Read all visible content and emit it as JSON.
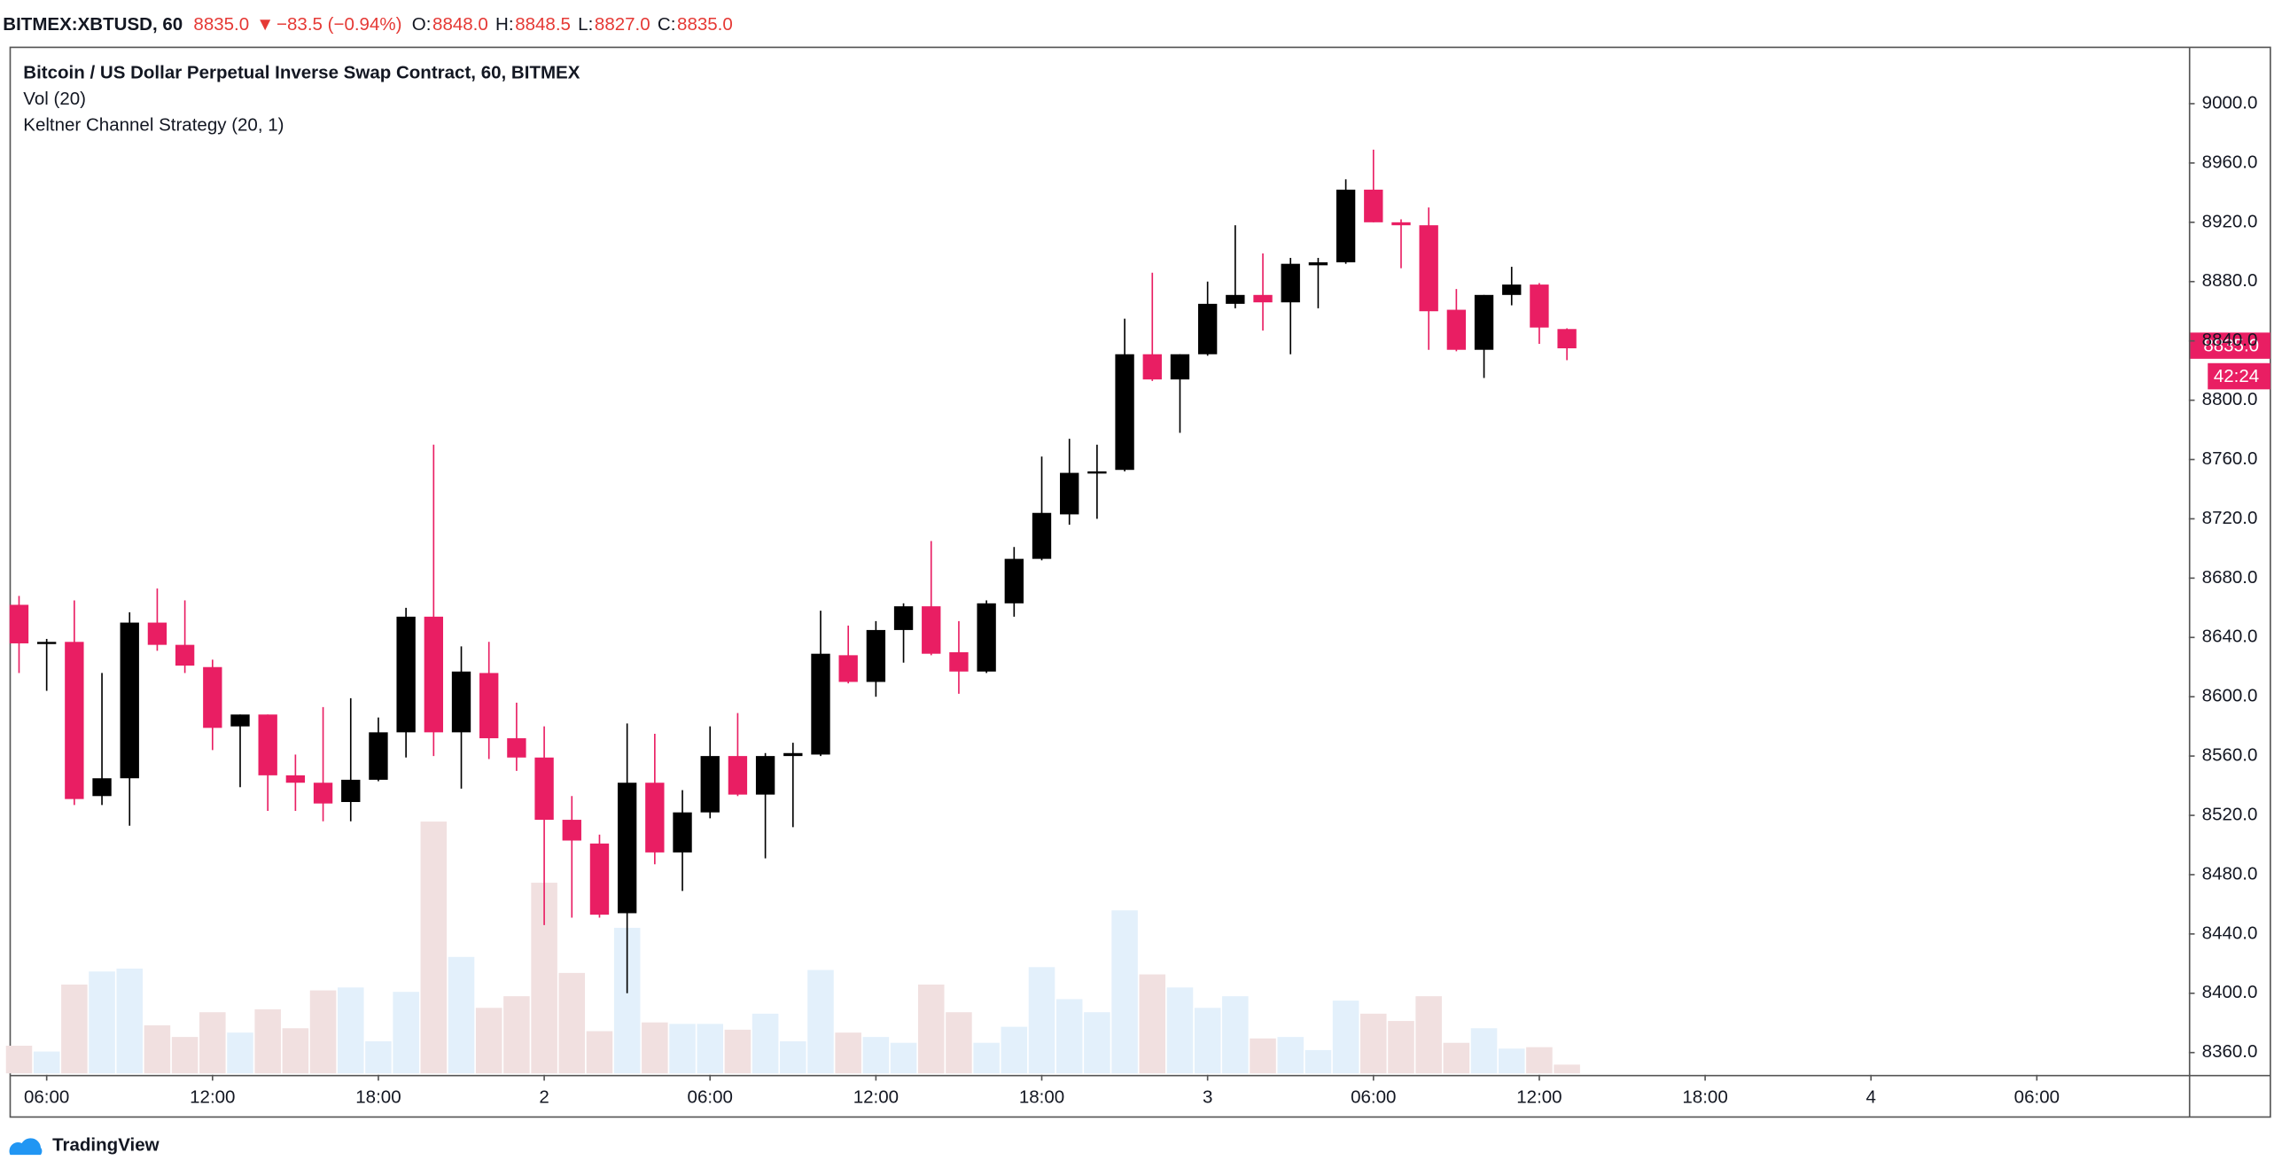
{
  "header": {
    "symbol": "BITMEX:XBTUSD, 60",
    "last": "8835.0",
    "arrow": "▼",
    "change": "−83.5 (−0.94%)",
    "ohlc": [
      {
        "key": "O:",
        "value": "8848.0"
      },
      {
        "key": "H:",
        "value": "8848.5"
      },
      {
        "key": "L:",
        "value": "8827.0"
      },
      {
        "key": "C:",
        "value": "8835.0"
      }
    ]
  },
  "legend": [
    "Bitcoin / US Dollar Perpetual Inverse Swap Contract, 60, BITMEX",
    "Vol (20)",
    "Keltner Channel Strategy (20, 1)"
  ],
  "price_badge": "8835.0",
  "countdown": "42:24",
  "brand": "TradingView",
  "chart_data": {
    "type": "candlestick",
    "x": [
      5,
      6,
      7,
      8,
      9,
      10,
      11,
      12,
      13,
      14,
      15,
      16,
      17,
      18,
      19,
      20,
      21,
      22,
      23,
      24,
      25,
      26,
      27,
      28,
      29,
      30,
      31,
      32,
      33,
      34,
      35,
      36,
      37,
      38,
      39,
      40,
      41,
      42,
      43,
      44,
      45,
      46,
      47,
      48,
      49,
      50,
      51,
      52,
      53,
      54,
      55,
      56,
      57,
      58,
      59,
      60,
      61
    ],
    "open": [
      8662,
      8636,
      8637,
      8533,
      8545,
      8650,
      8635,
      8620,
      8580,
      8588,
      8547,
      8542,
      8529,
      8544,
      8576,
      8654,
      8576,
      8616,
      8572,
      8559,
      8517,
      8501,
      8454,
      8542,
      8495,
      8522,
      8560,
      8534,
      8560,
      8561,
      8628,
      8610,
      8645,
      8661,
      8630,
      8617,
      8663,
      8693,
      8723,
      8751,
      8753,
      8831,
      8814,
      8831,
      8865,
      8871,
      8866,
      8891,
      8893,
      8942,
      8920,
      8918,
      8861,
      8834,
      8871,
      8878,
      8848
    ],
    "high": [
      8668,
      8639,
      8665,
      8616,
      8657,
      8673,
      8665,
      8625,
      8588,
      8588,
      8561,
      8593,
      8599,
      8586,
      8660,
      8770,
      8634,
      8637,
      8596,
      8580,
      8533,
      8507,
      8582,
      8575,
      8537,
      8580,
      8589,
      8562,
      8569,
      8658,
      8648,
      8651,
      8663,
      8705,
      8651,
      8665,
      8701,
      8762,
      8774,
      8770,
      8855,
      8886,
      8831,
      8880,
      8918,
      8899,
      8896,
      8896,
      8949,
      8969,
      8922,
      8930,
      8875,
      8871,
      8890,
      8879,
      8848.5
    ],
    "low": [
      8616,
      8604,
      8527,
      8527,
      8513,
      8631,
      8616,
      8564,
      8539,
      8523,
      8523,
      8516,
      8516,
      8543,
      8559,
      8560,
      8538,
      8558,
      8550,
      8446,
      8451,
      8451,
      8400,
      8487,
      8469,
      8518,
      8533,
      8491,
      8512,
      8560,
      8609,
      8600,
      8623,
      8628,
      8602,
      8616,
      8654,
      8692,
      8716,
      8720,
      8752,
      8813,
      8778,
      8830,
      8862,
      8847,
      8831,
      8862,
      8892,
      8920,
      8889,
      8834,
      8833,
      8815,
      8864,
      8838,
      8827
    ],
    "close": [
      8636,
      8637,
      8531,
      8545,
      8650,
      8635,
      8621,
      8579,
      8588,
      8547,
      8542,
      8528,
      8544,
      8576,
      8654,
      8576,
      8617,
      8572,
      8559,
      8517,
      8503,
      8453,
      8542,
      8495,
      8522,
      8560,
      8534,
      8560,
      8562,
      8629,
      8610,
      8645,
      8661,
      8629,
      8617,
      8663,
      8693,
      8724,
      8751,
      8752,
      8831,
      8814,
      8831,
      8865,
      8871,
      8866,
      8892,
      8893,
      8942,
      8920,
      8918,
      8860,
      8834,
      8871,
      8878,
      8849,
      8835
    ],
    "volume": [
      19,
      15,
      61,
      70,
      72,
      33,
      25,
      42,
      28,
      44,
      31,
      57,
      59,
      22,
      56,
      173,
      80,
      45,
      53,
      131,
      69,
      29,
      100,
      35,
      34,
      34,
      30,
      41,
      22,
      71,
      28,
      25,
      21,
      61,
      42,
      21,
      32,
      73,
      51,
      42,
      112,
      68,
      59,
      45,
      53,
      24,
      25,
      16,
      50,
      41,
      36,
      53,
      21,
      31,
      17,
      18,
      6
    ],
    "up_color": "#000000",
    "down_color": "#e91e63",
    "volume_up_color": "#e3f0fb",
    "volume_down_color": "#f1e0e0",
    "xlim": [
      4.68,
      83.5
    ],
    "xticks": [
      {
        "value": 6,
        "label": "06:00"
      },
      {
        "value": 12,
        "label": "12:00"
      },
      {
        "value": 18,
        "label": "18:00"
      },
      {
        "value": 24,
        "label": "2"
      },
      {
        "value": 30,
        "label": "06:00"
      },
      {
        "value": 36,
        "label": "12:00"
      },
      {
        "value": 42,
        "label": "18:00"
      },
      {
        "value": 48,
        "label": "3"
      },
      {
        "value": 54,
        "label": "06:00"
      },
      {
        "value": 60,
        "label": "12:00"
      },
      {
        "value": 66,
        "label": "18:00"
      },
      {
        "value": 72,
        "label": "4"
      },
      {
        "value": 78,
        "label": "06:00"
      }
    ],
    "ylim": [
      8345,
      9038
    ],
    "yticks": [
      {
        "value": 8360,
        "label": "8360.0"
      },
      {
        "value": 8400,
        "label": "8400.0"
      },
      {
        "value": 8440,
        "label": "8440.0"
      },
      {
        "value": 8480,
        "label": "8480.0"
      },
      {
        "value": 8520,
        "label": "8520.0"
      },
      {
        "value": 8560,
        "label": "8560.0"
      },
      {
        "value": 8600,
        "label": "8600.0"
      },
      {
        "value": 8640,
        "label": "8640.0"
      },
      {
        "value": 8680,
        "label": "8680.0"
      },
      {
        "value": 8720,
        "label": "8720.0"
      },
      {
        "value": 8760,
        "label": "8760.0"
      },
      {
        "value": 8800,
        "label": "8800.0"
      },
      {
        "value": 8840,
        "label": "8840.0"
      },
      {
        "value": 8880,
        "label": "8880.0"
      },
      {
        "value": 8920,
        "label": "8920.0"
      },
      {
        "value": 8960,
        "label": "8960.0"
      },
      {
        "value": 9000,
        "label": "9000.0"
      }
    ]
  }
}
